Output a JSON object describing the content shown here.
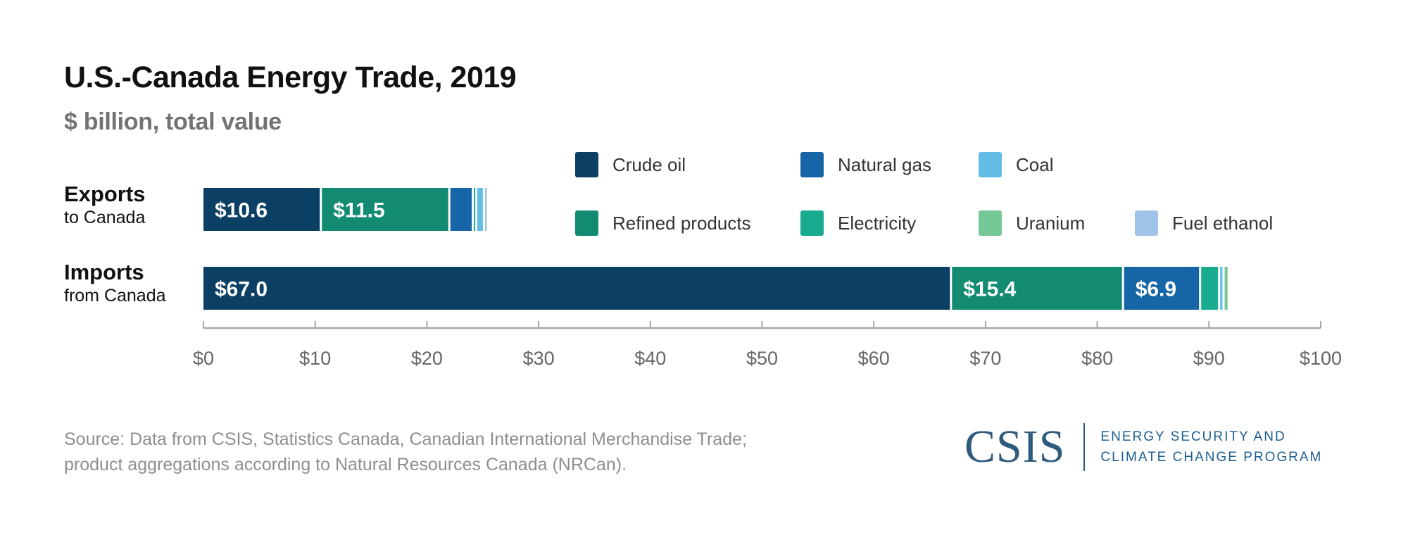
{
  "chart_data": {
    "type": "bar",
    "orientation": "horizontal",
    "stacked": true,
    "title": "U.S.-Canada Energy Trade, 2019",
    "subtitle": "$ billion, total value",
    "xlabel": "",
    "ylabel": "",
    "xlim": [
      0,
      100
    ],
    "x_ticks": [
      0,
      10,
      20,
      30,
      40,
      50,
      60,
      70,
      80,
      90,
      100
    ],
    "x_tick_labels": [
      "$0",
      "$10",
      "$20",
      "$30",
      "$40",
      "$50",
      "$60",
      "$70",
      "$80",
      "$90",
      "$100"
    ],
    "grid": false,
    "legend_position": "top-right",
    "categories": [
      {
        "main": "Exports",
        "sub": "to Canada"
      },
      {
        "main": "Imports",
        "sub": "from Canada"
      }
    ],
    "series": [
      {
        "name": "Crude oil",
        "color": "#0b3f63",
        "values": [
          10.6,
          67.0
        ],
        "labels": [
          "$10.6",
          "$67.0"
        ]
      },
      {
        "name": "Refined products",
        "color": "#138a72",
        "values": [
          11.5,
          15.4
        ],
        "labels": [
          "$11.5",
          "$15.4"
        ]
      },
      {
        "name": "Natural gas",
        "color": "#1665a7",
        "values": [
          2.1,
          6.9
        ],
        "labels": [
          "",
          "$6.9"
        ]
      },
      {
        "name": "Electricity",
        "color": "#18ab8f",
        "values": [
          0.3,
          1.7
        ],
        "labels": [
          "",
          ""
        ]
      },
      {
        "name": "Coal",
        "color": "#64bde6",
        "values": [
          0.7,
          0.4
        ],
        "labels": [
          "",
          ""
        ]
      },
      {
        "name": "Uranium",
        "color": "#75c796",
        "values": [
          0,
          0.45
        ],
        "labels": [
          "",
          ""
        ]
      },
      {
        "name": "Fuel ethanol",
        "color": "#a0c4e8",
        "values": [
          0.35,
          0
        ],
        "labels": [
          "",
          ""
        ]
      }
    ]
  },
  "legend": {
    "items": [
      {
        "label": "Crude oil",
        "color": "#0b3f63"
      },
      {
        "label": "Natural gas",
        "color": "#1665a7"
      },
      {
        "label": "Coal",
        "color": "#64bde6"
      },
      {
        "label": "Refined products",
        "color": "#138a72"
      },
      {
        "label": "Electricity",
        "color": "#18ab8f"
      },
      {
        "label": "Uranium",
        "color": "#75c796"
      },
      {
        "label": "Fuel ethanol",
        "color": "#a0c4e8"
      }
    ]
  },
  "footer": {
    "source_line1": "Source: Data from CSIS, Statistics Canada, Canadian International Merchandise Trade;",
    "source_line2": "product aggregations according to Natural Resources Canada (NRCan).",
    "logo_name": "CSIS",
    "logo_line1": "ENERGY SECURITY AND",
    "logo_line2": "CLIMATE CHANGE PROGRAM"
  }
}
